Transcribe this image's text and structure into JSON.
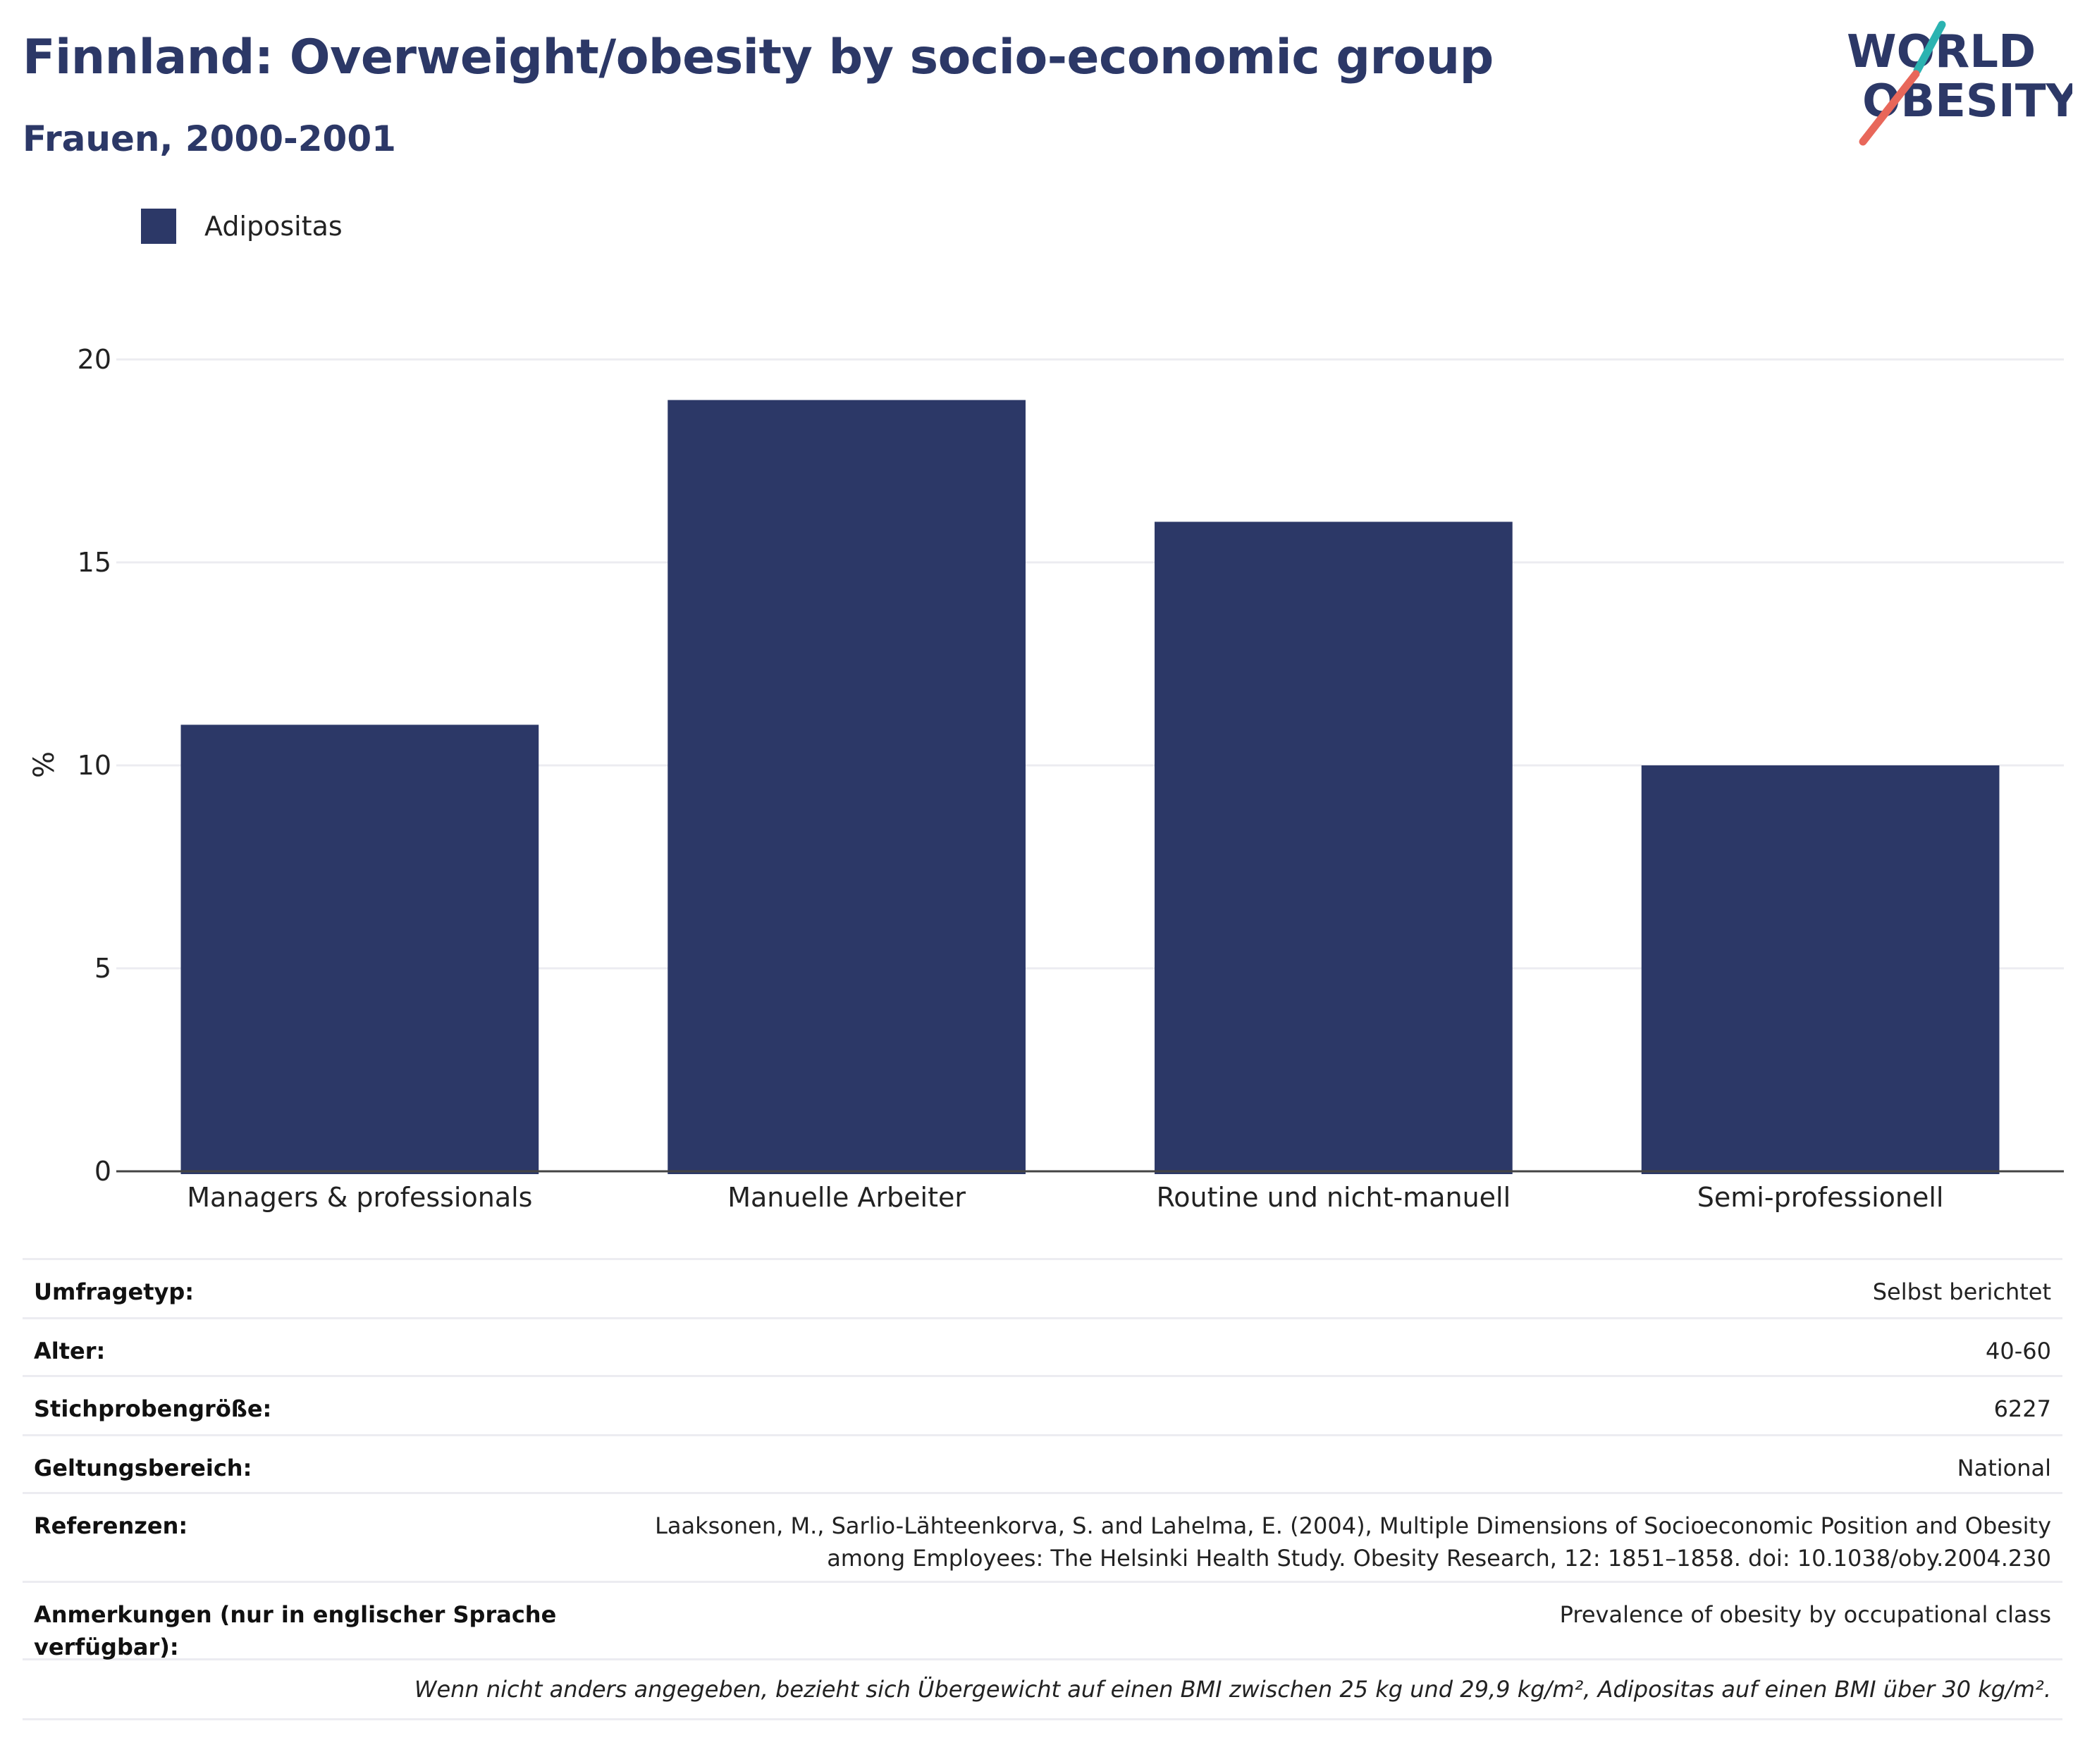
{
  "header": {
    "title": "Finnland: Overweight/obesity by socio-economic group",
    "subtitle": "Frauen, 2000-2001"
  },
  "logo": {
    "line1": "WORLD",
    "line2": "OBESITY",
    "icon": "world-obesity-logo"
  },
  "colors": {
    "bar": "#2c3867",
    "title": "#2c3867",
    "grid": "#ececf1",
    "logo_teal": "#2bb3b1",
    "logo_red": "#e8675a"
  },
  "chart_data": {
    "type": "bar",
    "categories": [
      "Managers & professionals",
      "Manuelle Arbeiter",
      "Routine und nicht-manuell",
      "Semi-professionell"
    ],
    "series": [
      {
        "name": "Adipositas",
        "values": [
          11,
          19,
          16,
          10
        ]
      }
    ],
    "ylabel": "%",
    "ylim": [
      0,
      20
    ],
    "yticks": [
      "0",
      "5",
      "10",
      "15",
      "20"
    ],
    "grid": true,
    "legend_position": "top-left"
  },
  "info": {
    "rows": [
      {
        "key": "Umfragetyp:",
        "value": "Selbst berichtet"
      },
      {
        "key": "Alter:",
        "value": "40-60"
      },
      {
        "key": "Stichprobengröße:",
        "value": "6227"
      },
      {
        "key": "Geltungsbereich:",
        "value": "National"
      },
      {
        "key": "Referenzen:",
        "value": "Laaksonen, M., Sarlio-Lähteenkorva, S. and Lahelma, E. (2004), Multiple Dimensions of Socioeconomic Position and Obesity among Employees: The Helsinki Health Study. Obesity Research, 12: 1851–1858. doi: 10.1038/oby.2004.230"
      },
      {
        "key": "Anmerkungen (nur in englischer Sprache verfügbar):",
        "value": "Prevalence of obesity by occupational class"
      }
    ],
    "footnote": "Wenn nicht anders angegeben, bezieht sich Übergewicht auf einen BMI zwischen 25 kg und 29,9 kg/m², Adipositas auf einen BMI über 30 kg/m²."
  }
}
